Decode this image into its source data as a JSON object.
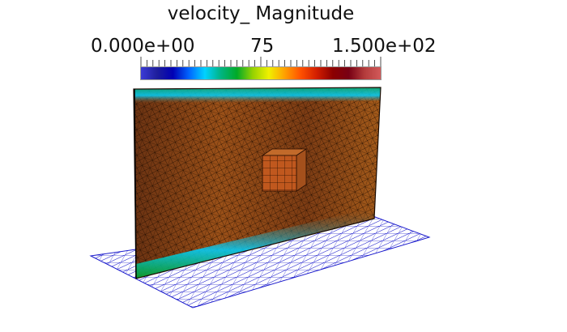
{
  "colorbar": {
    "title": "velocity_ Magnitude",
    "min_label": "0.000e+00",
    "mid_label": "75",
    "max_label": "1.500e+02",
    "min_value": 0,
    "max_value": 150,
    "palette": [
      "#3b3bd6",
      "#1e1e9c",
      "#0000b4",
      "#0064ff",
      "#00d2ff",
      "#00b482",
      "#00aa28",
      "#96d200",
      "#f0f000",
      "#ffa000",
      "#ff5000",
      "#d21e00",
      "#8c0000",
      "#780014",
      "#b43c3c",
      "#d25a5a"
    ]
  },
  "scene": {
    "ground_mesh_color": "#1a1acc",
    "wall_color": "#8b4513",
    "cube_color": "#c0581e"
  }
}
